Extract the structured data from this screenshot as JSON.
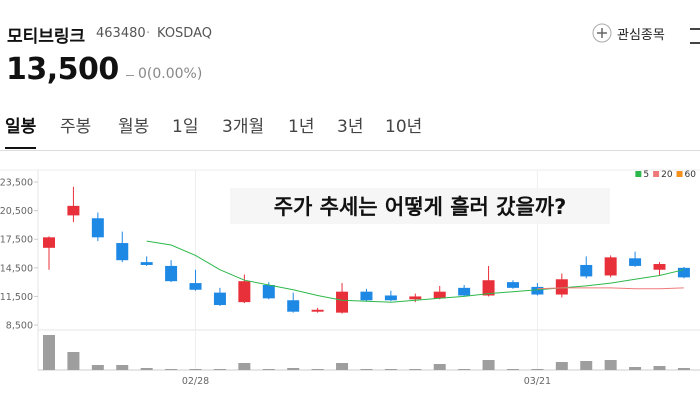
{
  "header": {
    "name": "모티브링크",
    "code": "463480",
    "market": "KOSDAQ",
    "price": "13,500",
    "change": "0(0.00%)",
    "watch": "관심종목"
  },
  "tabs": [
    "일봉",
    "주봉",
    "월봉",
    "1일",
    "3개월",
    "1년",
    "3년",
    "10년"
  ],
  "chart_data": {
    "type": "candlestick",
    "annotation": "주가 추세는 어떻게 흘러 갔을까?",
    "categories": [
      null,
      null,
      null,
      null,
      null,
      null,
      "02/28",
      null,
      null,
      null,
      null,
      null,
      null,
      null,
      null,
      null,
      null,
      null,
      null,
      null,
      "03/21",
      null,
      null,
      null,
      null,
      null,
      null
    ],
    "open": [
      16600,
      20000,
      19700,
      17100,
      15100,
      14700,
      12900,
      11900,
      10900,
      12700,
      11100,
      9900,
      9800,
      12000,
      11600,
      11200,
      11300,
      12400,
      11600,
      13000,
      12500,
      11700,
      14800,
      13700,
      15500,
      14300,
      14500
    ],
    "high": [
      17800,
      23000,
      20300,
      18300,
      15700,
      15300,
      14300,
      12400,
      13800,
      13000,
      11900,
      10300,
      12900,
      12300,
      12100,
      11800,
      12600,
      12700,
      14700,
      13200,
      12900,
      13900,
      15700,
      15800,
      16200,
      15100,
      14600
    ],
    "low": [
      14300,
      19300,
      17300,
      15100,
      14700,
      13000,
      12100,
      10500,
      10800,
      11200,
      9800,
      9800,
      9700,
      11000,
      11000,
      10900,
      11200,
      11500,
      11500,
      12300,
      11600,
      11400,
      13400,
      13500,
      14600,
      13700,
      13400
    ],
    "close": [
      17700,
      21000,
      17700,
      15300,
      14800,
      13100,
      12200,
      10600,
      13100,
      11300,
      9900,
      10100,
      12000,
      11100,
      11100,
      11500,
      12000,
      11600,
      13200,
      12400,
      11700,
      13300,
      13600,
      15600,
      14700,
      14900,
      13500
    ],
    "up_color": "#e8303a",
    "down_color": "#1e88e5",
    "series": [
      {
        "name": "5",
        "color": "#2db84b",
        "values": [
          null,
          null,
          null,
          null,
          17300,
          16900,
          15800,
          14300,
          13200,
          12700,
          12200,
          11600,
          11100,
          11000,
          10900,
          11100,
          11300,
          11500,
          11800,
          12000,
          12200,
          12400,
          12600,
          12900,
          13300,
          13700,
          14300
        ]
      },
      {
        "name": "20",
        "color": "#f07a7a",
        "values": [
          null,
          null,
          null,
          null,
          null,
          null,
          null,
          null,
          null,
          null,
          null,
          null,
          null,
          null,
          null,
          null,
          null,
          null,
          null,
          null,
          12300,
          12400,
          12400,
          12400,
          12300,
          12300,
          12400
        ]
      },
      {
        "name": "60",
        "color": "#f5921e",
        "values": [
          null,
          null,
          null,
          null,
          null,
          null,
          null,
          null,
          null,
          null,
          null,
          null,
          null,
          null,
          null,
          null,
          null,
          null,
          null,
          null,
          null,
          null,
          null,
          null,
          null,
          null,
          null
        ]
      }
    ],
    "volume": {
      "color": "#9e9e9e",
      "ylim": [
        0,
        40
      ],
      "values": [
        35,
        18,
        5,
        5,
        2,
        1,
        1,
        1,
        7,
        1,
        2,
        1,
        7,
        1,
        1,
        1,
        6,
        1,
        10,
        1,
        1,
        8,
        9,
        10,
        3,
        4,
        2
      ]
    },
    "ylim": [
      8000,
      24500
    ],
    "yticks": [
      {
        "value": 8500,
        "label": "8,500"
      },
      {
        "value": 11500,
        "label": "11,500"
      },
      {
        "value": 14500,
        "label": "14,500"
      },
      {
        "value": 17500,
        "label": "17,500"
      },
      {
        "value": 20500,
        "label": "20,500"
      },
      {
        "value": 23500,
        "label": "23,500"
      }
    ],
    "legend": "top-right"
  }
}
